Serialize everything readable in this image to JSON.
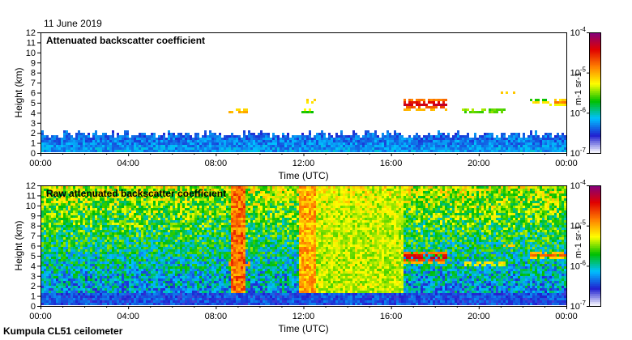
{
  "figure": {
    "date": "11 June 2019",
    "footer": "Kumpula CL51 ceilometer"
  },
  "chart_data": [
    {
      "type": "heatmap",
      "title": "Attenuated backscatter coefficient",
      "xlabel": "Time (UTC)",
      "ylabel": "Height (km)",
      "xlim": [
        0,
        24
      ],
      "ylim": [
        0,
        12
      ],
      "x_ticks": [
        "00:00",
        "04:00",
        "08:00",
        "12:00",
        "16:00",
        "20:00",
        "00:00"
      ],
      "y_ticks": [
        "0",
        "1",
        "2",
        "3",
        "4",
        "5",
        "6",
        "7",
        "8",
        "9",
        "10",
        "11",
        "12"
      ],
      "grid": false,
      "colorbar": {
        "scale": "log",
        "unit": "m-1 sr-1",
        "ticks": [
          "10-7",
          "10-6",
          "10-5",
          "10-4"
        ],
        "colors": [
          "#ffffff",
          "#2020d0",
          "#00c0ff",
          "#00c000",
          "#ffff00",
          "#ff8000",
          "#e00000",
          "#800080"
        ]
      },
      "boundary_layer": {
        "top_km": 2.0,
        "level": 0.2
      },
      "cloud_layers": [
        {
          "t_start": 8.6,
          "t_end": 9.6,
          "z_base": 3.9,
          "z_top": 4.4,
          "level": 0.75
        },
        {
          "t_start": 11.9,
          "t_end": 12.4,
          "z_base": 4.0,
          "z_top": 4.5,
          "level": 0.6
        },
        {
          "t_start": 12.1,
          "t_end": 12.5,
          "z_base": 4.9,
          "z_top": 5.4,
          "level": 0.7
        },
        {
          "t_start": 16.6,
          "t_end": 18.6,
          "z_base": 4.2,
          "z_top": 5.5,
          "level": 0.9
        },
        {
          "t_start": 19.2,
          "t_end": 20.3,
          "z_base": 3.9,
          "z_top": 4.5,
          "level": 0.55
        },
        {
          "t_start": 20.4,
          "t_end": 21.2,
          "z_base": 3.9,
          "z_top": 4.4,
          "level": 0.55
        },
        {
          "t_start": 21.0,
          "t_end": 21.7,
          "z_base": 5.8,
          "z_top": 6.2,
          "level": 0.6
        },
        {
          "t_start": 22.3,
          "t_end": 23.2,
          "z_base": 4.8,
          "z_top": 5.3,
          "level": 0.6
        },
        {
          "t_start": 23.2,
          "t_end": 24.0,
          "z_base": 4.6,
          "z_top": 5.5,
          "level": 0.7
        }
      ]
    },
    {
      "type": "heatmap",
      "title": "Raw attenuated backscatter coefficient",
      "xlabel": "Time (UTC)",
      "ylabel": "Height (km)",
      "xlim": [
        0,
        24
      ],
      "ylim": [
        0,
        12
      ],
      "x_ticks": [
        "00:00",
        "04:00",
        "08:00",
        "12:00",
        "16:00",
        "20:00",
        "00:00"
      ],
      "y_ticks": [
        "0",
        "1",
        "2",
        "3",
        "4",
        "5",
        "6",
        "7",
        "8",
        "9",
        "10",
        "11",
        "12"
      ],
      "grid": false,
      "colorbar": {
        "scale": "log",
        "unit": "m-1 sr-1",
        "ticks": [
          "10-7",
          "10-6",
          "10-5",
          "10-4"
        ],
        "colors": [
          "#ffffff",
          "#2020d0",
          "#00c0ff",
          "#00c000",
          "#ffff00",
          "#ff8000",
          "#e00000",
          "#800080"
        ]
      },
      "noise_high_periods": [
        {
          "t_start": 8.7,
          "t_end": 9.3,
          "level": 0.75
        },
        {
          "t_start": 11.8,
          "t_end": 12.5,
          "level": 0.68
        },
        {
          "t_start": 12.5,
          "t_end": 16.5,
          "level": 0.55
        }
      ],
      "cloud_layers": [
        {
          "t_start": 8.6,
          "t_end": 9.6,
          "z_base": 3.9,
          "z_top": 4.4,
          "level": 0.8
        },
        {
          "t_start": 11.9,
          "t_end": 12.4,
          "z_base": 4.0,
          "z_top": 4.5,
          "level": 0.65
        },
        {
          "t_start": 16.6,
          "t_end": 18.6,
          "z_base": 4.2,
          "z_top": 5.5,
          "level": 0.9
        },
        {
          "t_start": 19.2,
          "t_end": 21.2,
          "z_base": 3.9,
          "z_top": 4.5,
          "level": 0.65
        },
        {
          "t_start": 21.0,
          "t_end": 21.7,
          "z_base": 5.8,
          "z_top": 6.2,
          "level": 0.6
        },
        {
          "t_start": 22.3,
          "t_end": 24.0,
          "z_base": 4.6,
          "z_top": 5.5,
          "level": 0.75
        }
      ]
    }
  ]
}
